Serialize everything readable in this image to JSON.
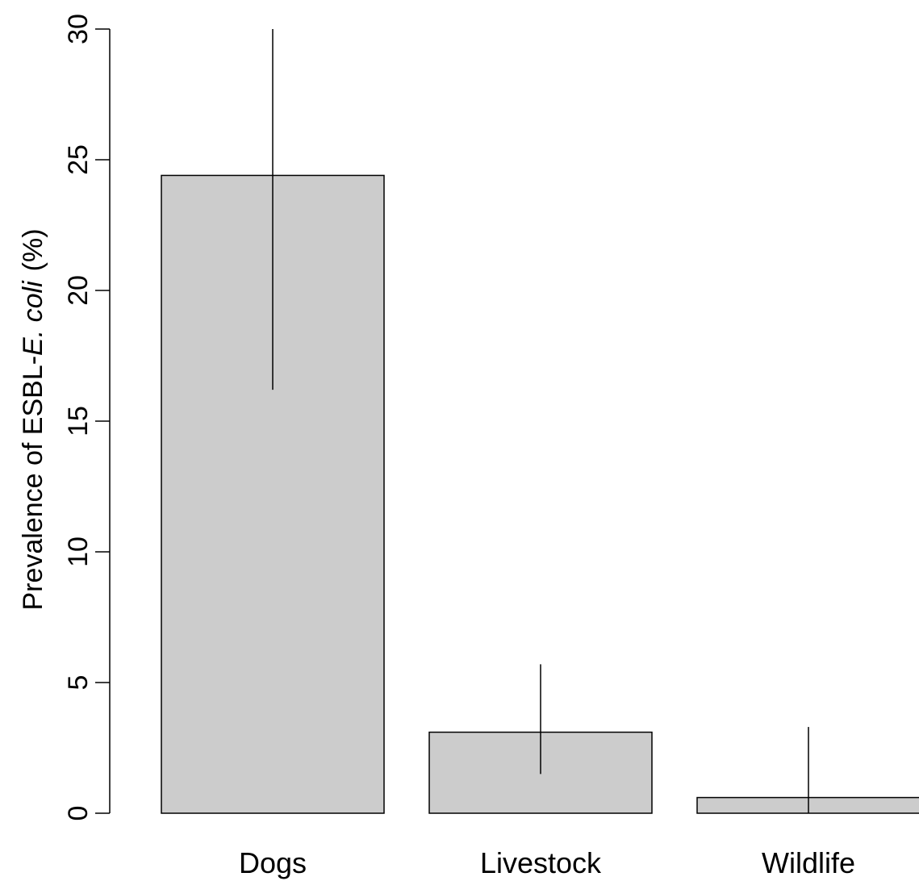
{
  "chart_data": {
    "type": "bar",
    "title": "",
    "xlabel": "",
    "ylabel": {
      "prefix": "Prevalence of ESBL-",
      "italic": "E. coli",
      "suffix": "(%)"
    },
    "categories": [
      "Dogs",
      "Livestock",
      "Wildlife"
    ],
    "values": [
      24.4,
      3.1,
      0.6
    ],
    "error_bars": [
      {
        "lower": 16.2,
        "upper": 30.0
      },
      {
        "lower": 1.5,
        "upper": 5.7
      },
      {
        "lower": 0.0,
        "upper": 3.3
      }
    ],
    "ylim": [
      0,
      30
    ],
    "yticks": [
      0,
      5,
      10,
      15,
      20,
      25,
      30
    ],
    "grid": false,
    "legend": "none",
    "colors": {
      "bar_fill": "#cccccc",
      "bar_stroke": "#000000",
      "axis": "#000000",
      "error_bar": "#000000"
    }
  }
}
